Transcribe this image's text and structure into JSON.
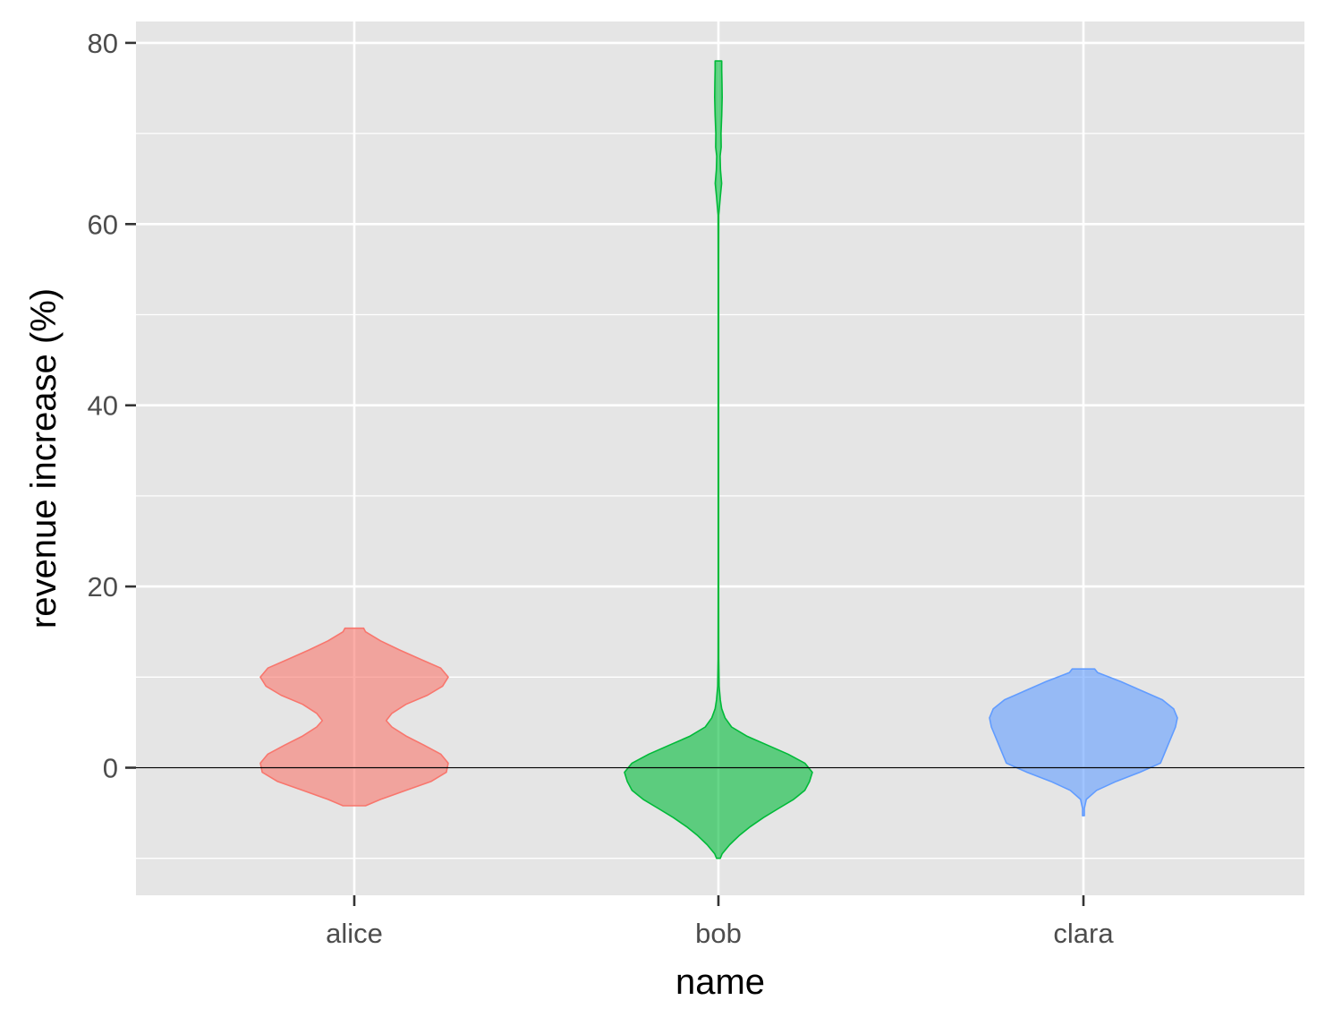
{
  "chart_data": {
    "type": "violin",
    "xlabel": "name",
    "ylabel": "revenue increase (%)",
    "categories": [
      "alice",
      "bob",
      "clara"
    ],
    "ylim": [
      -14,
      82
    ],
    "yticks": [
      0,
      20,
      40,
      60,
      80
    ],
    "yminor": [
      -10,
      10,
      30,
      50,
      70
    ],
    "reference_line": 0,
    "grid": true,
    "legend": "none",
    "colors": {
      "panel": "#e5e5e5",
      "grid": "#ffffff",
      "reference_line": "#000000"
    },
    "series": [
      {
        "category": "alice",
        "fill": "#f8766d",
        "outline": "#f8766d",
        "range": [
          -4.2,
          15.4
        ],
        "profile": [
          [
            -4.2,
            0.12
          ],
          [
            -3.5,
            0.28
          ],
          [
            -2.5,
            0.55
          ],
          [
            -1.5,
            0.82
          ],
          [
            -0.5,
            0.98
          ],
          [
            0.5,
            1.0
          ],
          [
            1.5,
            0.92
          ],
          [
            2.5,
            0.74
          ],
          [
            3.5,
            0.55
          ],
          [
            4.5,
            0.4
          ],
          [
            5.2,
            0.34
          ],
          [
            6.0,
            0.4
          ],
          [
            7.0,
            0.55
          ],
          [
            8.0,
            0.78
          ],
          [
            9.0,
            0.94
          ],
          [
            10.0,
            1.0
          ],
          [
            11.0,
            0.92
          ],
          [
            12.0,
            0.7
          ],
          [
            13.0,
            0.48
          ],
          [
            14.0,
            0.28
          ],
          [
            15.0,
            0.12
          ],
          [
            15.4,
            0.1
          ]
        ]
      },
      {
        "category": "bob",
        "fill": "#00ba38",
        "outline": "#00ba38",
        "range": [
          -10,
          78
        ],
        "profile": [
          [
            -10,
            0.02
          ],
          [
            -9.5,
            0.04
          ],
          [
            -8.5,
            0.12
          ],
          [
            -7.5,
            0.22
          ],
          [
            -6.5,
            0.34
          ],
          [
            -5.5,
            0.48
          ],
          [
            -4.5,
            0.64
          ],
          [
            -3.5,
            0.8
          ],
          [
            -2.5,
            0.92
          ],
          [
            -1.5,
            0.97
          ],
          [
            -0.5,
            1.0
          ],
          [
            0.5,
            0.92
          ],
          [
            1.5,
            0.74
          ],
          [
            2.5,
            0.52
          ],
          [
            3.5,
            0.3
          ],
          [
            4.5,
            0.14
          ],
          [
            5.5,
            0.07
          ],
          [
            6.5,
            0.035
          ],
          [
            7.5,
            0.02
          ],
          [
            9,
            0.008
          ],
          [
            12,
            0.004
          ],
          [
            20,
            0.003
          ],
          [
            40,
            0.003
          ],
          [
            55,
            0.003
          ],
          [
            61,
            0.004
          ],
          [
            63,
            0.02
          ],
          [
            64.5,
            0.034
          ],
          [
            66,
            0.022
          ],
          [
            67.5,
            0.018
          ],
          [
            68.5,
            0.03
          ],
          [
            70,
            0.028
          ],
          [
            72,
            0.035
          ],
          [
            74,
            0.04
          ],
          [
            75.5,
            0.038
          ],
          [
            77,
            0.035
          ],
          [
            78,
            0.035
          ]
        ]
      },
      {
        "category": "clara",
        "fill": "#619cff",
        "outline": "#619cff",
        "range": [
          -5.3,
          10.9
        ],
        "profile": [
          [
            -5.3,
            0.01
          ],
          [
            -4.5,
            0.01
          ],
          [
            -3.5,
            0.03
          ],
          [
            -2.5,
            0.14
          ],
          [
            -1.5,
            0.35
          ],
          [
            -0.5,
            0.6
          ],
          [
            0.5,
            0.82
          ],
          [
            1.5,
            0.86
          ],
          [
            2.5,
            0.9
          ],
          [
            3.5,
            0.94
          ],
          [
            4.5,
            0.98
          ],
          [
            5.5,
            1.0
          ],
          [
            6.5,
            0.96
          ],
          [
            7.5,
            0.84
          ],
          [
            8.5,
            0.62
          ],
          [
            9.5,
            0.4
          ],
          [
            10.5,
            0.15
          ],
          [
            10.9,
            0.12
          ]
        ]
      }
    ]
  }
}
